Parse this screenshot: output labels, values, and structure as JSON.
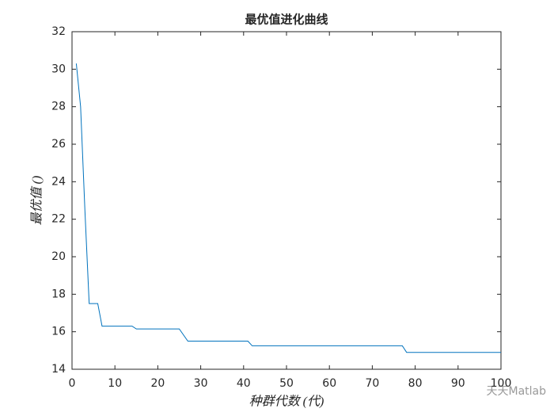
{
  "chart_data": {
    "type": "line",
    "title": "最优值进化曲线",
    "x_label": "种群代数 (代)",
    "y_label": "最优值 ()",
    "annotation": "天天Matlab",
    "x": [
      1,
      2,
      3,
      4,
      6,
      7,
      14,
      15,
      25,
      27,
      41,
      42,
      77,
      78,
      100
    ],
    "series": [
      {
        "name": "最优值",
        "color": "#0072bd",
        "values": [
          30.3,
          28.0,
          22.5,
          17.5,
          17.5,
          16.3,
          16.3,
          16.15,
          16.15,
          15.5,
          15.5,
          15.25,
          15.25,
          14.9,
          14.9
        ]
      }
    ],
    "xlim": [
      0,
      100
    ],
    "xticks": [
      0,
      10,
      20,
      30,
      40,
      50,
      60,
      70,
      80,
      90,
      100
    ],
    "ylim": [
      14,
      32
    ],
    "yticks": [
      14,
      16,
      18,
      20,
      22,
      24,
      26,
      28,
      30,
      32
    ],
    "grid": false
  }
}
